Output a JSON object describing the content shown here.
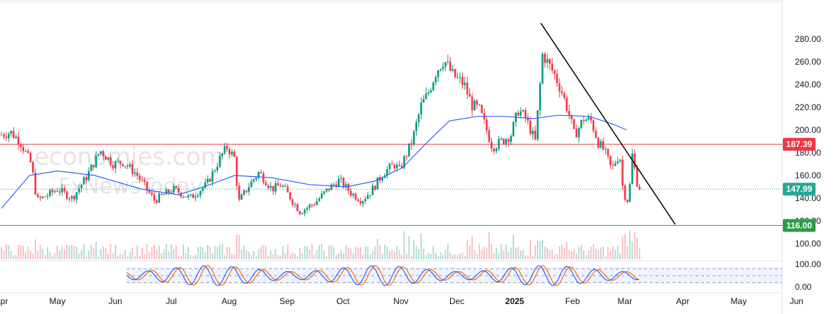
{
  "watermark": {
    "brand": "economies.com",
    "sub": "FxNewsToday"
  },
  "chart_data": {
    "type": "candlestick",
    "title": "",
    "price_axis": {
      "min": 80,
      "max": 300,
      "ticks": [
        "280.00",
        "260.00",
        "240.00",
        "220.00",
        "200.00",
        "180.00",
        "160.00",
        "140.00",
        "120.00",
        "100.00"
      ]
    },
    "x_ticks": [
      {
        "label": "Apr",
        "day": 0
      },
      {
        "label": "May",
        "day": 30
      },
      {
        "label": "Jun",
        "day": 61
      },
      {
        "label": "Jul",
        "day": 91
      },
      {
        "label": "Aug",
        "day": 122
      },
      {
        "label": "Sep",
        "day": 153
      },
      {
        "label": "Oct",
        "day": 183
      },
      {
        "label": "Nov",
        "day": 214
      },
      {
        "label": "Dec",
        "day": 244
      },
      {
        "label": "2025",
        "day": 275,
        "bold": true
      },
      {
        "label": "Feb",
        "day": 306
      },
      {
        "label": "Mar",
        "day": 334
      },
      {
        "label": "Apr",
        "day": 365
      },
      {
        "label": "May",
        "day": 395
      },
      {
        "label": "Jun",
        "day": 426
      }
    ],
    "last_day": 343,
    "horizontal_levels": [
      {
        "value": 187.39,
        "label": "187.39",
        "color": "#f23645",
        "style": "solid"
      },
      {
        "value": 147.99,
        "label": "147.99",
        "color": "#22ab94",
        "style": "dotted"
      },
      {
        "value": 116.0,
        "label": "116.00",
        "color": "#2e9c47",
        "style": "solid"
      }
    ],
    "trendline": {
      "from": {
        "day": 289,
        "value": 294
      },
      "to": {
        "day": 361,
        "value": 117
      }
    },
    "moving_average": {
      "color": "#2962ff",
      "points": [
        [
          0,
          131
        ],
        [
          15,
          160
        ],
        [
          30,
          164
        ],
        [
          50,
          160
        ],
        [
          75,
          148
        ],
        [
          95,
          143
        ],
        [
          110,
          151
        ],
        [
          125,
          160
        ],
        [
          145,
          158
        ],
        [
          165,
          152
        ],
        [
          185,
          150
        ],
        [
          200,
          155
        ],
        [
          215,
          167
        ],
        [
          228,
          189
        ],
        [
          240,
          208
        ],
        [
          255,
          212
        ],
        [
          270,
          212
        ],
        [
          285,
          210
        ],
        [
          298,
          213
        ],
        [
          315,
          212
        ],
        [
          328,
          205
        ],
        [
          335,
          200
        ]
      ]
    },
    "price_path": {
      "colors": {
        "up": "#089981",
        "down": "#f23645"
      },
      "points": [
        [
          0,
          196
        ],
        [
          5,
          198
        ],
        [
          10,
          190
        ],
        [
          16,
          170
        ],
        [
          19,
          138
        ],
        [
          24,
          142
        ],
        [
          30,
          148
        ],
        [
          38,
          140
        ],
        [
          46,
          160
        ],
        [
          53,
          182
        ],
        [
          60,
          170
        ],
        [
          65,
          172
        ],
        [
          72,
          162
        ],
        [
          82,
          138
        ],
        [
          92,
          148
        ],
        [
          101,
          140
        ],
        [
          110,
          152
        ],
        [
          118,
          178
        ],
        [
          121,
          185
        ],
        [
          125,
          175
        ],
        [
          127,
          136
        ],
        [
          133,
          152
        ],
        [
          138,
          163
        ],
        [
          145,
          148
        ],
        [
          150,
          152
        ],
        [
          155,
          140
        ],
        [
          160,
          128
        ],
        [
          168,
          136
        ],
        [
          175,
          148
        ],
        [
          181,
          156
        ],
        [
          187,
          145
        ],
        [
          193,
          138
        ],
        [
          198,
          146
        ],
        [
          205,
          163
        ],
        [
          211,
          170
        ],
        [
          213,
          164
        ],
        [
          220,
          190
        ],
        [
          225,
          222
        ],
        [
          228,
          230
        ],
        [
          233,
          252
        ],
        [
          237,
          262
        ],
        [
          242,
          248
        ],
        [
          248,
          240
        ],
        [
          252,
          222
        ],
        [
          256,
          218
        ],
        [
          260,
          200
        ],
        [
          263,
          185
        ],
        [
          268,
          190
        ],
        [
          273,
          196
        ],
        [
          277,
          218
        ],
        [
          281,
          210
        ],
        [
          286,
          190
        ],
        [
          288,
          228
        ],
        [
          290,
          268
        ],
        [
          293,
          258
        ],
        [
          296,
          250
        ],
        [
          300,
          235
        ],
        [
          304,
          215
        ],
        [
          307,
          195
        ],
        [
          312,
          210
        ],
        [
          316,
          208
        ],
        [
          320,
          188
        ],
        [
          323,
          182
        ],
        [
          327,
          165
        ],
        [
          330,
          176
        ],
        [
          332,
          175
        ],
        [
          333,
          145
        ],
        [
          336,
          137
        ],
        [
          338,
          178
        ],
        [
          341,
          150
        ],
        [
          343,
          148
        ]
      ]
    },
    "volume": {
      "max": 60
    },
    "oscillator": {
      "ticks": [
        "100.00",
        "0.00"
      ],
      "upper_band": 80,
      "lower_band": 20,
      "colors": {
        "k": "#2962ff",
        "d": "#ff6d00"
      }
    }
  }
}
